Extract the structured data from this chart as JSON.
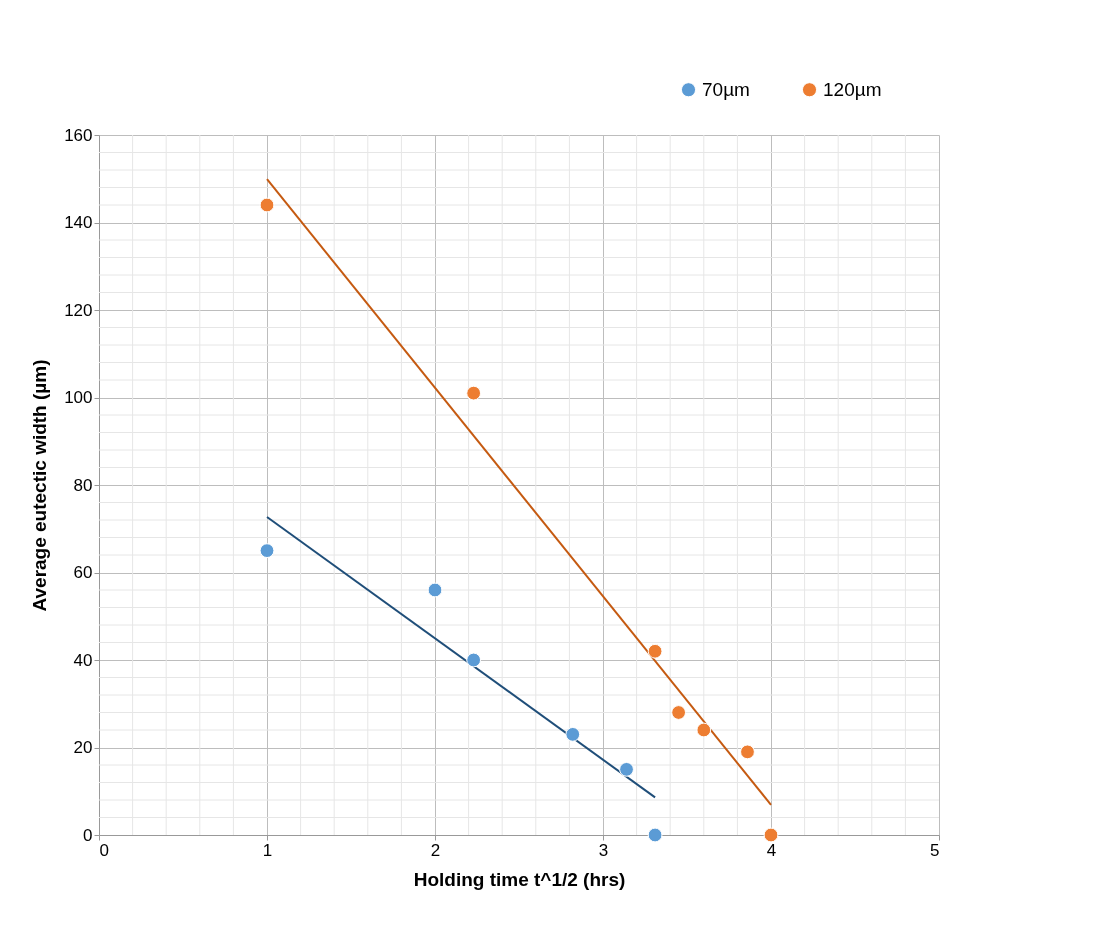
{
  "chart_data": {
    "type": "scatter",
    "xlabel": "Holding time t^1/2 (hrs)",
    "ylabel": "Average eutectic width (µm)",
    "xlim": [
      0,
      5
    ],
    "xticks": [
      0,
      1,
      2,
      3,
      4,
      5
    ],
    "ylim": [
      0,
      160
    ],
    "yticks": [
      0,
      20,
      40,
      60,
      80,
      100,
      120,
      140,
      160
    ],
    "grid": true,
    "legend": "top right",
    "series": [
      {
        "name": "70µm",
        "marker": "circle",
        "color": "#5b9bd5",
        "x": [
          1,
          2,
          2.23,
          2.82,
          3.14,
          3.31
        ],
        "values": [
          65,
          56,
          40,
          23,
          15,
          0
        ]
      },
      {
        "name": "120µm",
        "marker": "circle",
        "color": "#ed7d31",
        "x": [
          1,
          2.23,
          3.31,
          3.45,
          3.6,
          3.86,
          4
        ],
        "values": [
          144,
          101,
          42,
          28,
          24,
          19,
          0
        ]
      },
      {
        "type": "line",
        "marker": "none",
        "color": "#1f4e79",
        "x": [
          1,
          3.31
        ],
        "values": [
          72.7,
          8.6
        ]
      },
      {
        "type": "line",
        "marker": "none",
        "color": "#c55a11",
        "x": [
          1,
          4
        ],
        "values": [
          149.9,
          6.9
        ]
      }
    ]
  }
}
